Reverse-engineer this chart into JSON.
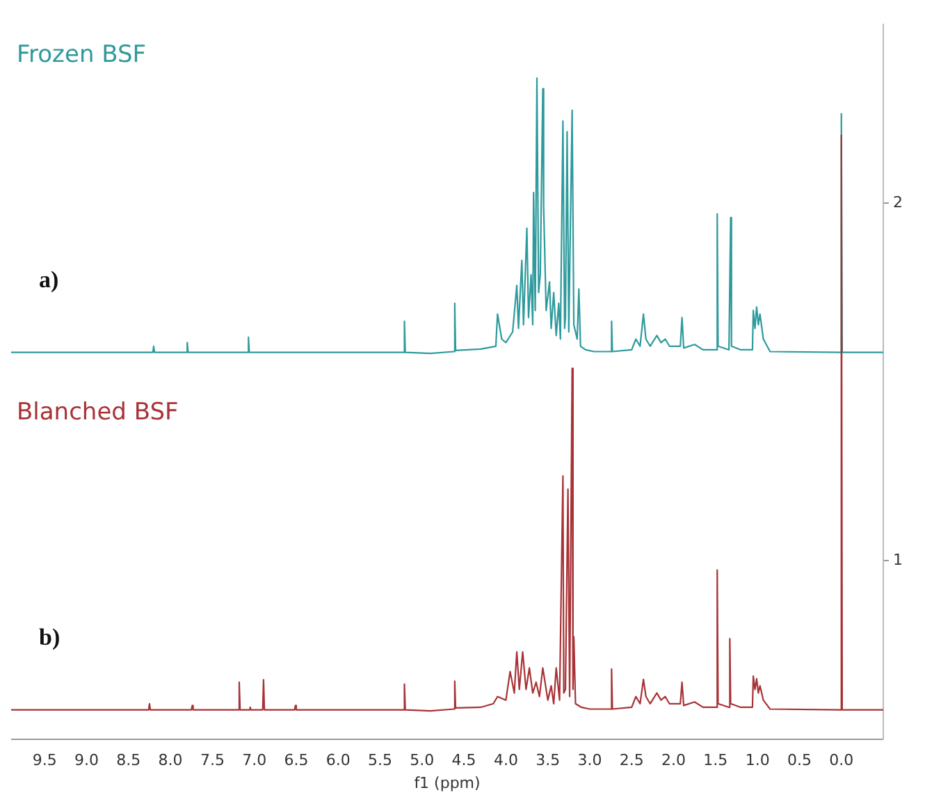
{
  "chart_data": {
    "type": "line",
    "xlabel": "f1 (ppm)",
    "xlim": [
      9.9,
      -0.5
    ],
    "xticks": [
      9.5,
      {
        "value": 9,
        "label": "9.0"
      },
      8.5,
      {
        "value": 8,
        "label": "8.0"
      },
      7.5,
      {
        "value": 7,
        "label": "7.0"
      },
      6.5,
      {
        "value": 6,
        "label": "6.0"
      },
      5.5,
      {
        "value": 5,
        "label": "5.0"
      },
      4.5,
      {
        "value": 4,
        "label": "4.0"
      },
      3.5,
      {
        "value": 3,
        "label": "3.0"
      },
      2.5,
      {
        "value": 2,
        "label": "2.0"
      },
      1.5,
      {
        "value": 1,
        "label": "1.0"
      },
      0.5,
      {
        "value": 0,
        "label": "0.0"
      }
    ],
    "ylim": [
      0.5,
      2.5
    ],
    "yticks": [
      1,
      2
    ],
    "grid": false,
    "legend": false,
    "annotations": [
      "a)",
      "b)"
    ],
    "series": [
      {
        "name": "Frozen BSF",
        "color": "#2e9a9c",
        "x": [
          9.9,
          8.21,
          8.2,
          8.19,
          7.81,
          7.8,
          7.79,
          7.08,
          7.07,
          7.06,
          5.6,
          5.22,
          5.21,
          5.2,
          4.9,
          4.62,
          4.61,
          4.6,
          4.3,
          4.12,
          4.1,
          4.05,
          4.0,
          3.92,
          3.87,
          3.85,
          3.81,
          3.79,
          3.75,
          3.73,
          3.7,
          3.68,
          3.67,
          3.65,
          3.63,
          3.61,
          3.59,
          3.56,
          3.55,
          3.52,
          3.48,
          3.46,
          3.43,
          3.4,
          3.37,
          3.35,
          3.32,
          3.3,
          3.29,
          3.27,
          3.25,
          3.21,
          3.19,
          3.15,
          3.13,
          3.11,
          3.05,
          2.95,
          2.75,
          2.74,
          2.73,
          2.5,
          2.45,
          2.4,
          2.36,
          2.33,
          2.28,
          2.2,
          2.15,
          2.1,
          2.05,
          1.92,
          1.9,
          1.88,
          1.75,
          1.65,
          1.49,
          1.48,
          1.47,
          1.34,
          1.32,
          1.31,
          1.2,
          1.06,
          1.05,
          1.03,
          1.01,
          0.99,
          0.97,
          0.93,
          0.85,
          0.01,
          0,
          -0.01,
          -0.5
        ],
        "values": [
          1.583,
          1.583,
          1.6,
          1.583,
          1.583,
          1.61,
          1.583,
          1.583,
          1.625,
          1.583,
          1.583,
          1.583,
          1.67,
          1.583,
          1.58,
          1.585,
          1.72,
          1.588,
          1.592,
          1.6,
          1.69,
          1.62,
          1.61,
          1.64,
          1.77,
          1.65,
          1.84,
          1.66,
          1.93,
          1.68,
          1.8,
          1.66,
          2.03,
          1.7,
          2.35,
          1.75,
          1.8,
          2.32,
          1.99,
          1.7,
          1.78,
          1.65,
          1.75,
          1.63,
          1.72,
          1.62,
          2.23,
          1.65,
          1.68,
          2.2,
          1.64,
          2.26,
          1.66,
          1.62,
          1.76,
          1.6,
          1.59,
          1.585,
          1.585,
          1.67,
          1.585,
          1.59,
          1.62,
          1.6,
          1.69,
          1.62,
          1.6,
          1.63,
          1.61,
          1.62,
          1.6,
          1.6,
          1.68,
          1.595,
          1.605,
          1.59,
          1.59,
          1.97,
          1.6,
          1.59,
          1.96,
          1.6,
          1.59,
          1.59,
          1.7,
          1.65,
          1.71,
          1.66,
          1.69,
          1.62,
          1.585,
          1.583,
          2.25,
          1.583,
          1.583
        ]
      },
      {
        "name": "Blanched BSF",
        "color": "#a83236",
        "x": [
          9.9,
          8.26,
          8.25,
          8.24,
          7.75,
          7.74,
          7.73,
          7.19,
          7.18,
          7.17,
          7.06,
          7.05,
          7.04,
          6.9,
          6.89,
          6.88,
          6.52,
          6.51,
          6.5,
          5.6,
          5.22,
          5.21,
          5.2,
          4.9,
          4.62,
          4.61,
          4.6,
          4.3,
          4.15,
          4.1,
          4.0,
          3.95,
          3.9,
          3.87,
          3.84,
          3.8,
          3.76,
          3.72,
          3.68,
          3.64,
          3.6,
          3.56,
          3.5,
          3.46,
          3.43,
          3.4,
          3.36,
          3.32,
          3.31,
          3.29,
          3.26,
          3.24,
          3.21,
          3.2,
          3.19,
          3.17,
          3.1,
          3.0,
          2.75,
          2.74,
          2.73,
          2.5,
          2.45,
          2.4,
          2.36,
          2.33,
          2.28,
          2.2,
          2.15,
          2.1,
          2.05,
          1.92,
          1.9,
          1.88,
          1.75,
          1.65,
          1.49,
          1.48,
          1.47,
          1.34,
          1.33,
          1.32,
          1.2,
          1.06,
          1.05,
          1.03,
          1.01,
          0.99,
          0.97,
          0.93,
          0.85,
          0.01,
          0,
          -0.01,
          -0.5
        ],
        "values": [
          0.583,
          0.583,
          0.6,
          0.583,
          0.583,
          0.595,
          0.583,
          0.583,
          0.66,
          0.583,
          0.583,
          0.59,
          0.583,
          0.583,
          0.667,
          0.583,
          0.583,
          0.595,
          0.583,
          0.583,
          0.583,
          0.655,
          0.583,
          0.58,
          0.585,
          0.663,
          0.588,
          0.59,
          0.6,
          0.62,
          0.61,
          0.69,
          0.63,
          0.745,
          0.64,
          0.745,
          0.64,
          0.7,
          0.63,
          0.66,
          0.62,
          0.7,
          0.61,
          0.65,
          0.6,
          0.7,
          0.61,
          1.237,
          0.63,
          0.64,
          1.2,
          0.62,
          1.538,
          0.64,
          0.787,
          0.6,
          0.59,
          0.585,
          0.585,
          0.697,
          0.585,
          0.59,
          0.62,
          0.6,
          0.668,
          0.62,
          0.6,
          0.63,
          0.61,
          0.62,
          0.6,
          0.6,
          0.66,
          0.595,
          0.605,
          0.59,
          0.59,
          0.974,
          0.6,
          0.59,
          0.782,
          0.6,
          0.59,
          0.59,
          0.677,
          0.64,
          0.67,
          0.63,
          0.65,
          0.61,
          0.585,
          0.583,
          2.19,
          0.583,
          0.583
        ]
      }
    ]
  }
}
